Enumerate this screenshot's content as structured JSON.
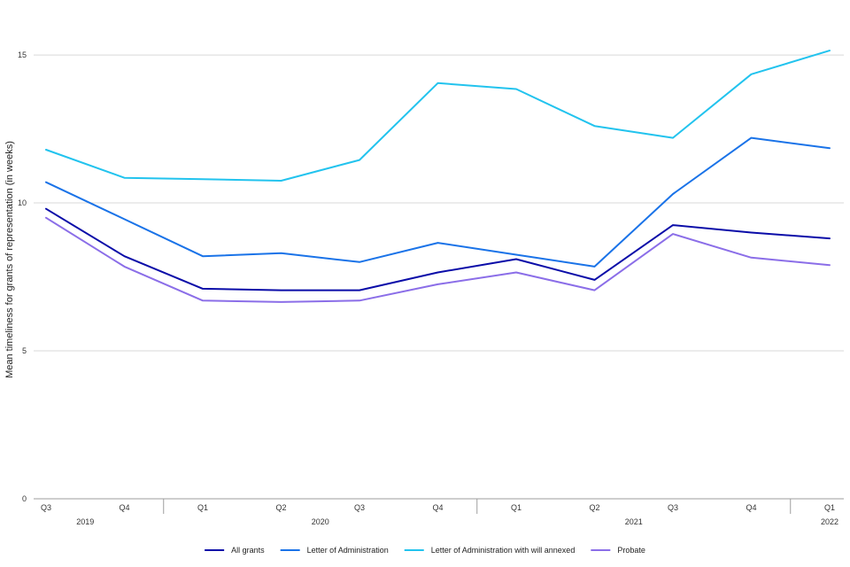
{
  "chart_data": {
    "type": "line",
    "title": "",
    "xlabel": "",
    "ylabel": "Mean timeliness for grants of representation (in weeks)",
    "ylim": [
      0,
      16.5
    ],
    "yticks": [
      0,
      5,
      10,
      15
    ],
    "grid": true,
    "legend_position": "bottom",
    "categories": [
      "Q3",
      "Q4",
      "Q1",
      "Q2",
      "Q3",
      "Q4",
      "Q1",
      "Q2",
      "Q3",
      "Q4",
      "Q1"
    ],
    "year_groups": [
      {
        "label": "2019",
        "start": 0,
        "end": 1
      },
      {
        "label": "2020",
        "start": 2,
        "end": 5
      },
      {
        "label": "2021",
        "start": 6,
        "end": 9
      },
      {
        "label": "2022",
        "start": 10,
        "end": 10
      }
    ],
    "series": [
      {
        "name": "All grants",
        "color": "#0a0ca8",
        "values": [
          9.8,
          8.2,
          7.1,
          7.05,
          7.05,
          7.65,
          8.1,
          7.4,
          9.25,
          9.0,
          8.8
        ]
      },
      {
        "name": "Letter of Administration",
        "color": "#1a73e8",
        "values": [
          10.7,
          9.45,
          8.2,
          8.3,
          8.0,
          8.65,
          8.25,
          7.85,
          10.3,
          12.2,
          11.85
        ]
      },
      {
        "name": "Letter of Administration with will annexed",
        "color": "#22c3ee",
        "values": [
          11.8,
          10.85,
          10.8,
          10.75,
          11.45,
          14.05,
          13.85,
          12.6,
          12.2,
          14.35,
          15.15
        ]
      },
      {
        "name": "Probate",
        "color": "#8b6ee8",
        "values": [
          9.5,
          7.85,
          6.7,
          6.65,
          6.7,
          7.25,
          7.65,
          7.05,
          8.95,
          8.15,
          7.9
        ]
      }
    ]
  }
}
